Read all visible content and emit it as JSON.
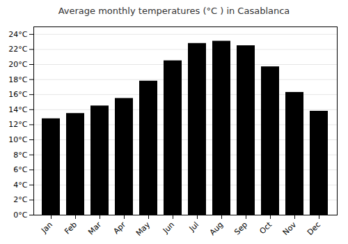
{
  "chart_data": {
    "type": "bar",
    "title": "Average monthly temperatures (°C ) in Casablanca",
    "categories": [
      "Jan",
      "Feb",
      "Mar",
      "Apr",
      "May",
      "Jun",
      "Jul",
      "Aug",
      "Sep",
      "Oct",
      "Nov",
      "Dec"
    ],
    "values": [
      12.8,
      13.5,
      14.5,
      15.5,
      17.8,
      20.5,
      22.8,
      23.1,
      22.5,
      19.7,
      16.3,
      13.8
    ],
    "ylim": [
      0,
      25
    ],
    "yticks": [
      {
        "value": 0,
        "label": "0°C"
      },
      {
        "value": 2,
        "label": "2°C"
      },
      {
        "value": 4,
        "label": "4°C"
      },
      {
        "value": 6,
        "label": "6°C"
      },
      {
        "value": 8,
        "label": "8°C"
      },
      {
        "value": 10,
        "label": "10°C"
      },
      {
        "value": 12,
        "label": "12°C"
      },
      {
        "value": 14,
        "label": "14°C"
      },
      {
        "value": 16,
        "label": "16°C"
      },
      {
        "value": 18,
        "label": "18°C"
      },
      {
        "value": 20,
        "label": "20°C"
      },
      {
        "value": 22,
        "label": "22°C"
      },
      {
        "value": 24,
        "label": "24°C"
      }
    ],
    "grid": true
  }
}
